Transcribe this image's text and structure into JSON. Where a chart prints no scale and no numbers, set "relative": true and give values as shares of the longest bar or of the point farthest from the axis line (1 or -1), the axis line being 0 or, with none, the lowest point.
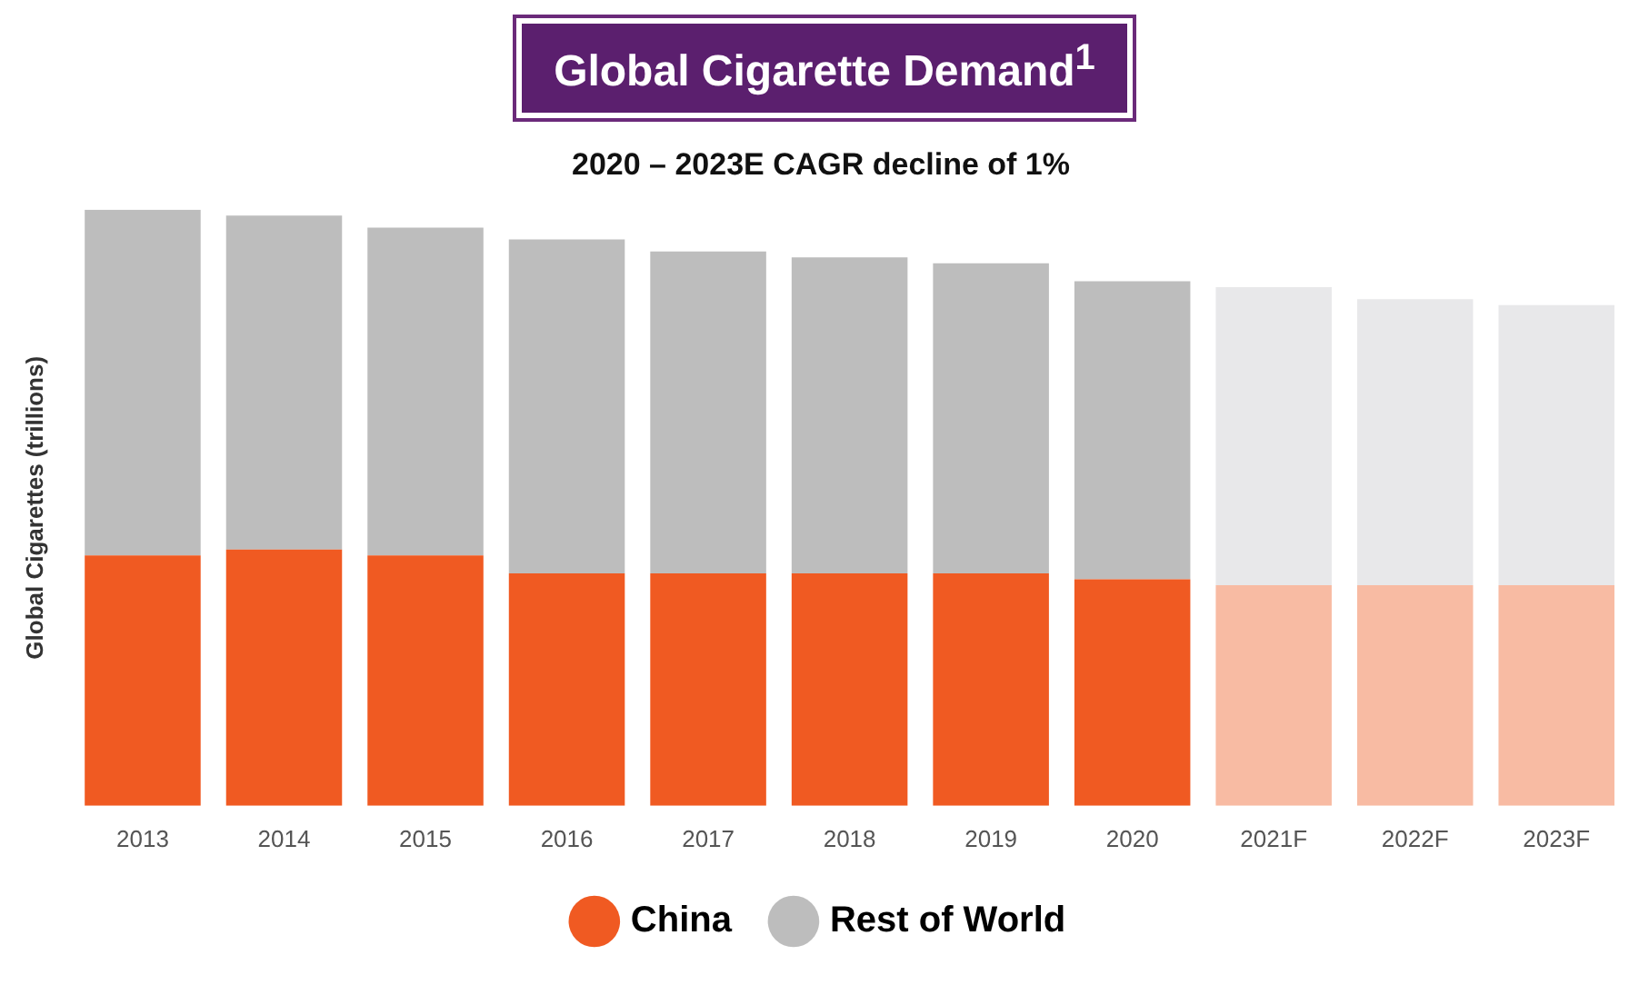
{
  "chart_data": {
    "type": "bar",
    "title": "Global Cigarette Demand$^{1}$",
    "subtitle": "2020 – 2023E CAGR decline of 1%",
    "ylabel": "Global Cigarettes (trillions)",
    "relative": true,
    "stacked": true,
    "grid": false,
    "legend": "bottom",
    "marker": "circle",
    "categories": [
      "2013",
      "2014",
      "2015",
      "2016",
      "2017",
      "2018",
      "2019",
      "2020",
      "2021F",
      "2022F",
      "2023F"
    ],
    "series": [
      {
        "name": "China",
        "color": "#f05a22",
        "colors": [
          "#f05a22",
          "#f05a22",
          "#f05a22",
          "#f05a22",
          "#f05a22",
          "#f05a22",
          "#f05a22",
          "#f05a22",
          "#f8bba3",
          "#f8bba3",
          "#f8bba3"
        ],
        "values": [
          0.42,
          0.43,
          0.42,
          0.39,
          0.39,
          0.39,
          0.39,
          0.38,
          0.37,
          0.37,
          0.37
        ]
      },
      {
        "name": "Rest of World",
        "color": "#bdbdbd",
        "colors": [
          "#bdbdbd",
          "#bdbdbd",
          "#bdbdbd",
          "#bdbdbd",
          "#bdbdbd",
          "#bdbdbd",
          "#bdbdbd",
          "#bdbdbd",
          "#e8e8ea",
          "#e8e8ea",
          "#e8e8ea"
        ],
        "values": [
          0.58,
          0.56,
          0.55,
          0.56,
          0.54,
          0.53,
          0.52,
          0.5,
          0.5,
          0.48,
          0.47
        ]
      }
    ]
  }
}
